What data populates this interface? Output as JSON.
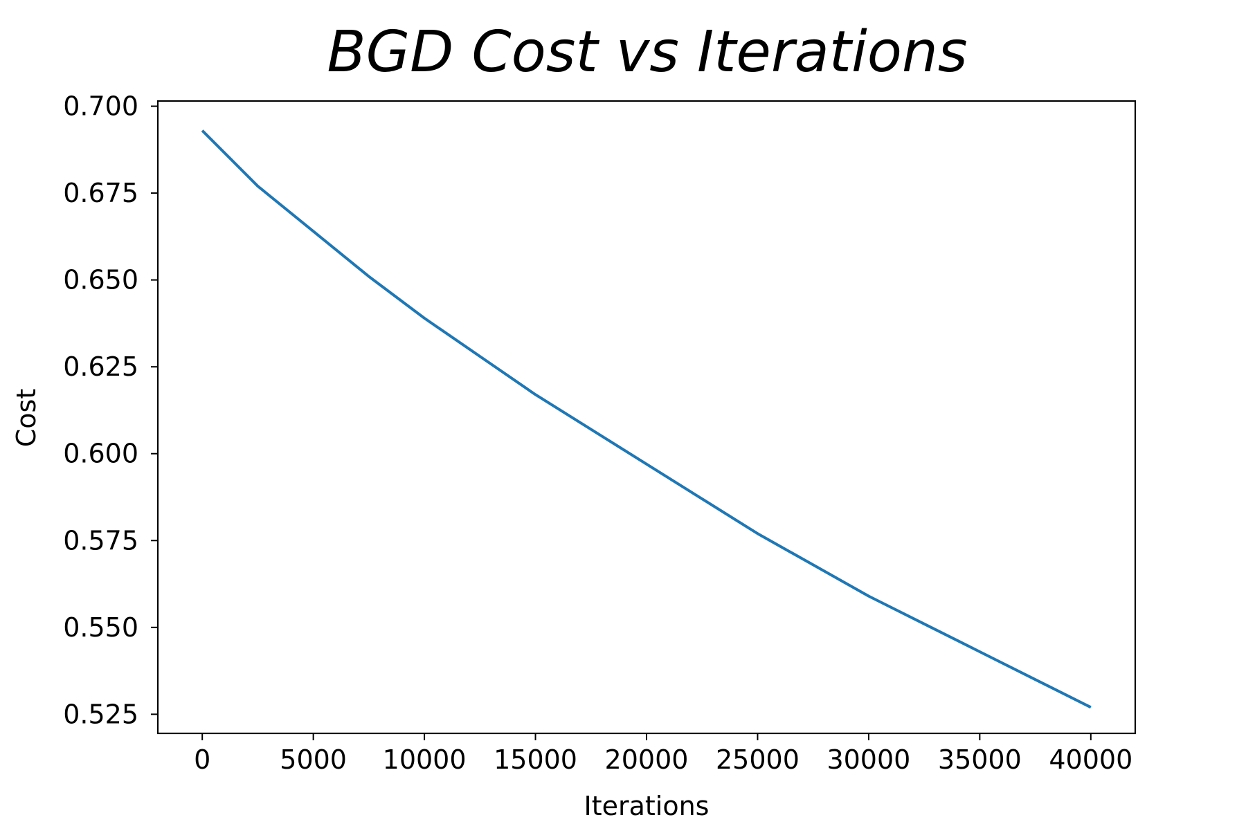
{
  "chart_data": {
    "type": "line",
    "title": "BGD Cost vs Iterations",
    "xlabel": "Iterations",
    "ylabel": "Cost",
    "xlim": [
      -2000,
      42000
    ],
    "ylim": [
      0.5195,
      0.7015
    ],
    "xticks": [
      0,
      5000,
      10000,
      15000,
      20000,
      25000,
      30000,
      35000,
      40000
    ],
    "xtick_labels": [
      "0",
      "5000",
      "10000",
      "15000",
      "20000",
      "25000",
      "30000",
      "35000",
      "40000"
    ],
    "yticks": [
      0.525,
      0.55,
      0.575,
      0.6,
      0.625,
      0.65,
      0.675,
      0.7
    ],
    "ytick_labels": [
      "0.525",
      "0.550",
      "0.575",
      "0.600",
      "0.625",
      "0.650",
      "0.675",
      "0.700"
    ],
    "grid": false,
    "series": [
      {
        "color": "#1f77b4",
        "x": [
          0,
          2500,
          5000,
          7500,
          10000,
          12500,
          15000,
          17500,
          20000,
          22500,
          25000,
          27500,
          30000,
          32500,
          35000,
          37500,
          40000
        ],
        "y": [
          0.693,
          0.677,
          0.664,
          0.651,
          0.639,
          0.628,
          0.617,
          0.607,
          0.597,
          0.587,
          0.577,
          0.568,
          0.559,
          0.551,
          0.543,
          0.535,
          0.527
        ]
      }
    ]
  }
}
